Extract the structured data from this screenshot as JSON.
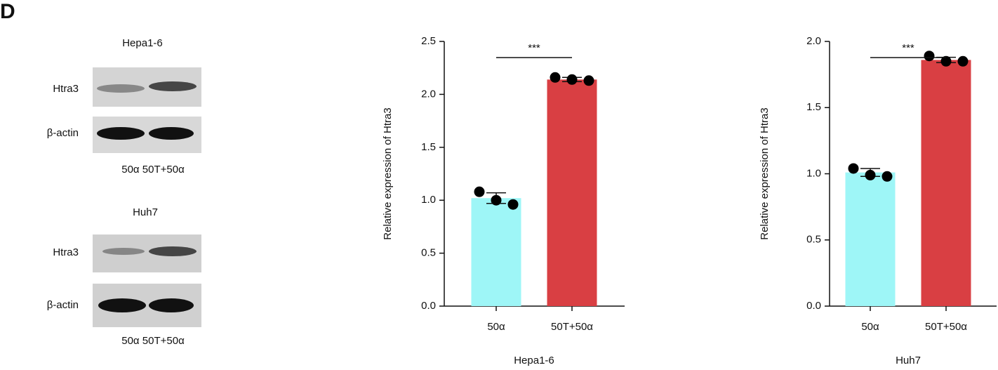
{
  "panel_label": "D",
  "blots": [
    {
      "title": "Hepa1-6",
      "rows": [
        "Htra3",
        "β-actin"
      ],
      "lanes": "50α 50T+50α"
    },
    {
      "title": "Huh7",
      "rows": [
        "Htra3",
        "β-actin"
      ],
      "lanes": "50α 50T+50α"
    }
  ],
  "chart_data": [
    {
      "type": "bar",
      "xlabel": "Hepa1-6",
      "ylabel": "Relative  expression of Htra3",
      "categories": [
        "50α",
        "50T+50α"
      ],
      "values": [
        1.02,
        2.14
      ],
      "errors": [
        0.05,
        0.02
      ],
      "points": [
        [
          1.08,
          1.0,
          0.96
        ],
        [
          2.16,
          2.14,
          2.13
        ]
      ],
      "colors": [
        "#9ef6f7",
        "#d93f43"
      ],
      "annotation": "***",
      "ylim": [
        0,
        2.5
      ],
      "yticks": [
        {
          "value": 0,
          "label": "0.0"
        },
        0.5,
        {
          "value": 1,
          "label": "1.0"
        },
        1.5,
        {
          "value": 2,
          "label": "2.0"
        },
        2.5
      ]
    },
    {
      "type": "bar",
      "xlabel": "Huh7",
      "ylabel": "Relative  expression of Htra3",
      "categories": [
        "50α",
        "50T+50α"
      ],
      "values": [
        1.01,
        1.86
      ],
      "errors": [
        0.03,
        0.02
      ],
      "points": [
        [
          1.04,
          0.99,
          0.98
        ],
        [
          1.89,
          1.85,
          1.85
        ]
      ],
      "colors": [
        "#9ef6f7",
        "#d93f43"
      ],
      "annotation": "***",
      "ylim": [
        0,
        2
      ],
      "yticks": [
        {
          "value": 0,
          "label": "0.0"
        },
        0.5,
        {
          "value": 1,
          "label": "1.0"
        },
        1.5,
        {
          "value": 2,
          "label": "2.0"
        }
      ]
    }
  ]
}
